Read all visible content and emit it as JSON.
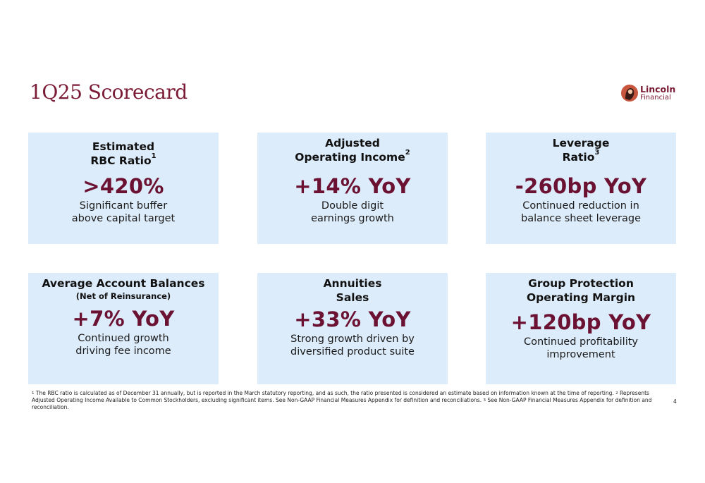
{
  "title": "1Q25 Scorecard",
  "logo": {
    "line1": "Lincoln",
    "line2": "Financial"
  },
  "cards": [
    {
      "h1": "Estimated",
      "h2": "RBC Ratio",
      "h2_sup": "1",
      "metric": ">420%",
      "d1": "Significant buffer",
      "d2": "above capital target"
    },
    {
      "h1": "Adjusted",
      "h2": "Operating Income",
      "h2_sup": "2",
      "metric": "+14% YoY",
      "d1": "Double digit",
      "d2": "earnings growth"
    },
    {
      "h1": "Leverage",
      "h2": "Ratio",
      "h2_sup": "3",
      "metric": "-260bp YoY",
      "d1": "Continued reduction in",
      "d2": "balance sheet leverage"
    },
    {
      "h1": "Average Account Balances",
      "sub": "(Net of Reinsurance)",
      "metric": "+7% YoY",
      "d1": "Continued growth",
      "d2": "driving fee income"
    },
    {
      "h1": "Annuities",
      "h2": "Sales",
      "metric": "+33% YoY",
      "d1": "Strong growth driven by",
      "d2": "diversified product suite"
    },
    {
      "h1": "Group Protection",
      "h2": "Operating Margin",
      "metric": "+120bp YoY",
      "d1": "Continued profitability",
      "d2": "improvement"
    }
  ],
  "footnotes": {
    "n1": "1",
    "t1": " The RBC ratio is calculated as of December 31 annually, but is reported in the March statutory reporting, and as such, the ratio presented is considered an estimate based on information known at the time of reporting.  ",
    "n2": "2",
    "t2": " Represents Adjusted Operating Income Available to Common Stockholders, excluding significant items. See Non-GAAP Financial Measures Appendix for definition and reconciliations.  ",
    "n3": "3",
    "t3": " See Non-GAAP Financial Measures Appendix for definition and reconciliation."
  },
  "page_number": "4",
  "colors": {
    "brand": "#7a1a35",
    "metric": "#6b1233",
    "card_bg": "#ddecfb"
  }
}
